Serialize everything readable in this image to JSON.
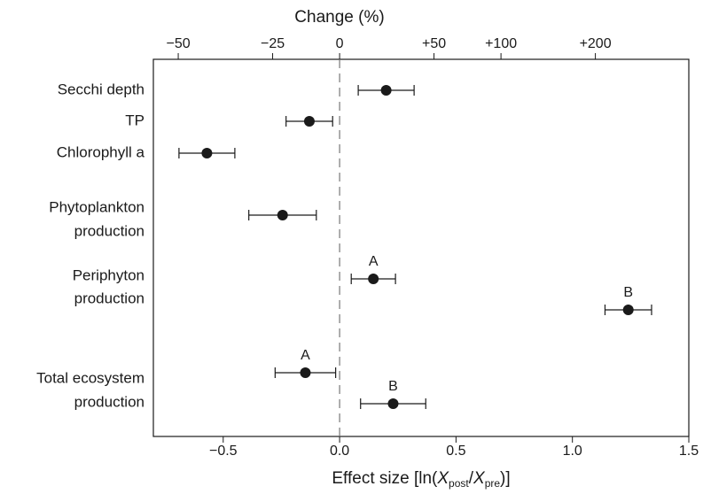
{
  "chart_data": {
    "type": "forest",
    "title": "Change (%)",
    "x_label_parts": [
      "Effect size [ln(",
      "X",
      "post",
      "/",
      "X",
      "pre",
      ")]"
    ],
    "xlim": [
      -0.8,
      1.5
    ],
    "xticks": [
      {
        "value": -0.5,
        "label": "−0.5"
      },
      {
        "value": 0,
        "label": "0.0"
      },
      0.5,
      {
        "value": 1.0,
        "label": "1.0"
      },
      1.5
    ],
    "x2scale": "log",
    "x2ticks": [
      {
        "value": -50,
        "label": "−50"
      },
      {
        "value": -25,
        "label": "−25"
      },
      0,
      {
        "value": 50,
        "label": "+50"
      },
      {
        "value": 100,
        "label": "+100"
      },
      {
        "value": 200,
        "label": "+200"
      }
    ],
    "color": "#1a1a1a",
    "rows": [
      {
        "label": [
          "Secchi depth"
        ],
        "estimates": [
          {
            "value": 0.2,
            "error": 0.12
          }
        ]
      },
      {
        "label": [
          "TP"
        ],
        "estimates": [
          {
            "value": -0.13,
            "error": 0.1
          }
        ]
      },
      {
        "label": [
          "Chlorophyll a"
        ],
        "estimates": [
          {
            "value": -0.57,
            "error": 0.12
          }
        ]
      },
      {
        "label": [
          "Phytoplankton",
          "production"
        ],
        "estimates": [
          {
            "value": -0.245,
            "error": 0.145
          }
        ]
      },
      {
        "label": [
          "Periphyton",
          "production"
        ],
        "estimates": [
          {
            "tag": "A",
            "value": 0.145,
            "error": 0.095
          },
          {
            "tag": "B",
            "value": 1.24,
            "error": 0.1
          }
        ]
      },
      {
        "label": [
          "Total ecosystem",
          "production"
        ],
        "estimates": [
          {
            "tag": "A",
            "value": -0.147,
            "error": 0.13
          },
          {
            "tag": "B",
            "value": 0.23,
            "error": 0.14
          }
        ]
      }
    ]
  }
}
